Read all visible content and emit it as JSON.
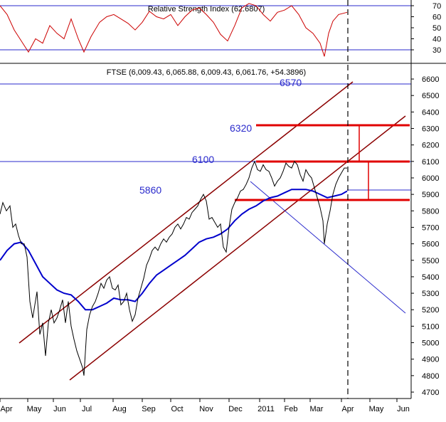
{
  "chart_data": {
    "type": "line",
    "title": "FTSE (6,009.43, 6,065.88, 6,009.43, 6,061.76, +54.3896)",
    "rsi_title": "Relative Strength Index (62.6807)",
    "rsi_ticks": [
      30,
      40,
      50,
      60,
      70
    ],
    "rsi_levels": [
      30,
      70
    ],
    "price_ticks": [
      4700,
      4800,
      4900,
      5000,
      5100,
      5200,
      5300,
      5400,
      5500,
      5600,
      5700,
      5800,
      5900,
      6000,
      6100,
      6200,
      6300,
      6400,
      6500,
      6600
    ],
    "ylim": [
      4680,
      6650
    ],
    "x_ticks": [
      "Apr",
      "May",
      "Jun",
      "Jul",
      "Aug",
      "Sep",
      "Oct",
      "Nov",
      "Dec",
      "2011",
      "Feb",
      "Mar",
      "Apr",
      "May",
      "Jun"
    ],
    "annotations": [
      {
        "text": "6570",
        "value": 6570
      },
      {
        "text": "6320",
        "value": 6320
      },
      {
        "text": "6100",
        "value": 6100
      },
      {
        "text": "5860",
        "value": 5860
      }
    ],
    "horizontal_levels": [
      6570,
      6320,
      6100,
      5860
    ],
    "series": [
      {
        "key": "price",
        "color": "#000000",
        "points": [
          [
            0,
            5780
          ],
          [
            4,
            5850
          ],
          [
            9,
            5800
          ],
          [
            14,
            5830
          ],
          [
            18,
            5700
          ],
          [
            22,
            5720
          ],
          [
            26,
            5650
          ],
          [
            30,
            5600
          ],
          [
            34,
            5600
          ],
          [
            38,
            5520
          ],
          [
            42,
            5250
          ],
          [
            46,
            5150
          ],
          [
            52,
            5310
          ],
          [
            56,
            5050
          ],
          [
            60,
            5120
          ],
          [
            64,
            4920
          ],
          [
            68,
            5120
          ],
          [
            72,
            5200
          ],
          [
            76,
            5120
          ],
          [
            80,
            5150
          ],
          [
            84,
            5200
          ],
          [
            88,
            5260
          ],
          [
            92,
            5120
          ],
          [
            96,
            5250
          ],
          [
            100,
            5100
          ],
          [
            104,
            5020
          ],
          [
            108,
            4950
          ],
          [
            112,
            4900
          ],
          [
            116,
            4850
          ],
          [
            118,
            4800
          ],
          [
            122,
            5080
          ],
          [
            126,
            5170
          ],
          [
            130,
            5220
          ],
          [
            134,
            5250
          ],
          [
            138,
            5300
          ],
          [
            142,
            5360
          ],
          [
            146,
            5330
          ],
          [
            150,
            5380
          ],
          [
            154,
            5400
          ],
          [
            158,
            5330
          ],
          [
            162,
            5320
          ],
          [
            166,
            5350
          ],
          [
            170,
            5230
          ],
          [
            174,
            5250
          ],
          [
            178,
            5300
          ],
          [
            182,
            5200
          ],
          [
            186,
            5130
          ],
          [
            190,
            5170
          ],
          [
            194,
            5270
          ],
          [
            198,
            5330
          ],
          [
            202,
            5390
          ],
          [
            206,
            5470
          ],
          [
            210,
            5510
          ],
          [
            214,
            5560
          ],
          [
            218,
            5580
          ],
          [
            222,
            5560
          ],
          [
            226,
            5600
          ],
          [
            230,
            5630
          ],
          [
            234,
            5610
          ],
          [
            238,
            5640
          ],
          [
            242,
            5660
          ],
          [
            246,
            5700
          ],
          [
            250,
            5720
          ],
          [
            254,
            5690
          ],
          [
            258,
            5720
          ],
          [
            262,
            5760
          ],
          [
            266,
            5750
          ],
          [
            270,
            5790
          ],
          [
            274,
            5810
          ],
          [
            278,
            5830
          ],
          [
            282,
            5870
          ],
          [
            286,
            5900
          ],
          [
            290,
            5860
          ],
          [
            294,
            5750
          ],
          [
            298,
            5760
          ],
          [
            302,
            5730
          ],
          [
            306,
            5700
          ],
          [
            310,
            5720
          ],
          [
            314,
            5580
          ],
          [
            318,
            5550
          ],
          [
            322,
            5700
          ],
          [
            326,
            5810
          ],
          [
            330,
            5850
          ],
          [
            334,
            5880
          ],
          [
            338,
            5920
          ],
          [
            342,
            5930
          ],
          [
            346,
            5960
          ],
          [
            350,
            6000
          ],
          [
            354,
            6060
          ],
          [
            358,
            6100
          ],
          [
            362,
            6050
          ],
          [
            366,
            6040
          ],
          [
            370,
            6080
          ],
          [
            374,
            6050
          ],
          [
            378,
            6040
          ],
          [
            382,
            6000
          ],
          [
            386,
            5950
          ],
          [
            390,
            5980
          ],
          [
            394,
            6000
          ],
          [
            398,
            6040
          ],
          [
            402,
            6090
          ],
          [
            406,
            6070
          ],
          [
            410,
            6060
          ],
          [
            414,
            6100
          ],
          [
            418,
            6080
          ],
          [
            422,
            6020
          ],
          [
            426,
            5980
          ],
          [
            430,
            6050
          ],
          [
            434,
            6020
          ],
          [
            438,
            6000
          ],
          [
            442,
            5940
          ],
          [
            446,
            5880
          ],
          [
            450,
            5820
          ],
          [
            454,
            5740
          ],
          [
            456,
            5600
          ],
          [
            460,
            5720
          ],
          [
            464,
            5800
          ],
          [
            468,
            5900
          ],
          [
            472,
            5960
          ],
          [
            476,
            6000
          ],
          [
            480,
            6030
          ],
          [
            484,
            6060
          ],
          [
            488,
            6060
          ]
        ]
      },
      {
        "key": "ma",
        "color": "#0000cc",
        "points": [
          [
            0,
            5500
          ],
          [
            10,
            5560
          ],
          [
            20,
            5600
          ],
          [
            30,
            5610
          ],
          [
            40,
            5560
          ],
          [
            50,
            5480
          ],
          [
            60,
            5400
          ],
          [
            70,
            5360
          ],
          [
            80,
            5320
          ],
          [
            90,
            5300
          ],
          [
            100,
            5290
          ],
          [
            110,
            5250
          ],
          [
            120,
            5200
          ],
          [
            130,
            5200
          ],
          [
            140,
            5220
          ],
          [
            150,
            5240
          ],
          [
            160,
            5270
          ],
          [
            170,
            5260
          ],
          [
            180,
            5260
          ],
          [
            190,
            5250
          ],
          [
            200,
            5300
          ],
          [
            210,
            5360
          ],
          [
            220,
            5410
          ],
          [
            230,
            5440
          ],
          [
            240,
            5470
          ],
          [
            250,
            5500
          ],
          [
            260,
            5530
          ],
          [
            270,
            5570
          ],
          [
            280,
            5610
          ],
          [
            290,
            5630
          ],
          [
            300,
            5640
          ],
          [
            310,
            5660
          ],
          [
            320,
            5690
          ],
          [
            330,
            5740
          ],
          [
            340,
            5780
          ],
          [
            350,
            5810
          ],
          [
            360,
            5830
          ],
          [
            370,
            5860
          ],
          [
            380,
            5880
          ],
          [
            390,
            5890
          ],
          [
            400,
            5910
          ],
          [
            410,
            5930
          ],
          [
            420,
            5930
          ],
          [
            430,
            5930
          ],
          [
            440,
            5920
          ],
          [
            450,
            5900
          ],
          [
            460,
            5880
          ],
          [
            470,
            5890
          ],
          [
            480,
            5900
          ],
          [
            488,
            5920
          ]
        ]
      },
      {
        "key": "rsi",
        "color": "#cc0000",
        "points": [
          [
            0,
            70
          ],
          [
            10,
            62
          ],
          [
            20,
            48
          ],
          [
            30,
            38
          ],
          [
            40,
            28
          ],
          [
            50,
            40
          ],
          [
            60,
            36
          ],
          [
            70,
            52
          ],
          [
            80,
            45
          ],
          [
            90,
            40
          ],
          [
            100,
            58
          ],
          [
            110,
            40
          ],
          [
            118,
            28
          ],
          [
            128,
            42
          ],
          [
            140,
            55
          ],
          [
            150,
            60
          ],
          [
            160,
            62
          ],
          [
            170,
            58
          ],
          [
            180,
            54
          ],
          [
            190,
            48
          ],
          [
            200,
            55
          ],
          [
            210,
            65
          ],
          [
            220,
            60
          ],
          [
            230,
            58
          ],
          [
            240,
            62
          ],
          [
            250,
            52
          ],
          [
            260,
            60
          ],
          [
            270,
            66
          ],
          [
            280,
            68
          ],
          [
            290,
            62
          ],
          [
            300,
            55
          ],
          [
            310,
            44
          ],
          [
            320,
            38
          ],
          [
            330,
            52
          ],
          [
            340,
            68
          ],
          [
            350,
            72
          ],
          [
            360,
            70
          ],
          [
            370,
            62
          ],
          [
            380,
            56
          ],
          [
            390,
            64
          ],
          [
            400,
            66
          ],
          [
            410,
            70
          ],
          [
            420,
            62
          ],
          [
            430,
            50
          ],
          [
            440,
            45
          ],
          [
            450,
            36
          ],
          [
            456,
            24
          ],
          [
            462,
            45
          ],
          [
            468,
            56
          ],
          [
            476,
            62
          ],
          [
            488,
            64
          ]
        ]
      }
    ]
  }
}
